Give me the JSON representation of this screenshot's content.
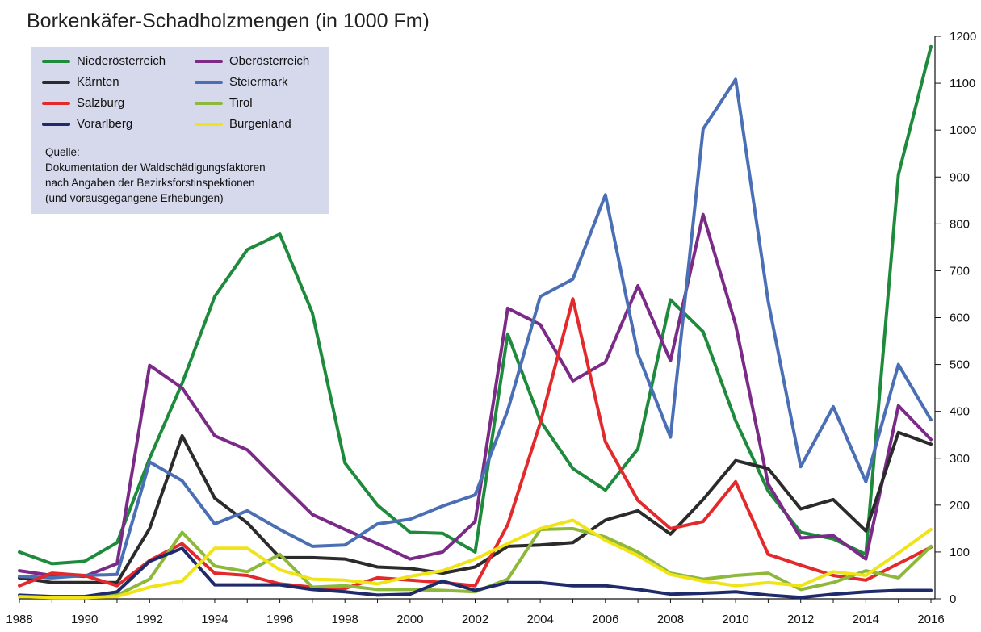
{
  "chart_data": {
    "type": "line",
    "title": "Borkenkäfer-Schadholzmengen  (in 1000 Fm)",
    "x": [
      1988,
      1989,
      1990,
      1991,
      1992,
      1993,
      1994,
      1995,
      1996,
      1997,
      1998,
      1999,
      2000,
      2001,
      2002,
      2003,
      2004,
      2005,
      2006,
      2007,
      2008,
      2009,
      2010,
      2011,
      2012,
      2013,
      2014,
      2015,
      2016
    ],
    "x_ticks": [
      1988,
      1990,
      1992,
      1994,
      1996,
      1998,
      2000,
      2002,
      2004,
      2006,
      2008,
      2010,
      2012,
      2014,
      2016
    ],
    "y_ticks": [
      0,
      100,
      200,
      300,
      400,
      500,
      600,
      700,
      800,
      900,
      1000,
      1100,
      1200
    ],
    "xlim": [
      1988,
      2016
    ],
    "ylim": [
      0,
      1200
    ],
    "y_axis_side": "right",
    "grid": false,
    "legend_position": "top-left",
    "series": [
      {
        "name": "Niederösterreich",
        "color": "#1e8a3c",
        "values": [
          100,
          75,
          80,
          120,
          300,
          460,
          645,
          745,
          778,
          610,
          290,
          200,
          142,
          140,
          100,
          565,
          380,
          278,
          232,
          320,
          638,
          570,
          380,
          230,
          142,
          128,
          95,
          905,
          1178
        ]
      },
      {
        "name": "Oberösterreich",
        "color": "#7b2a87",
        "values": [
          60,
          50,
          48,
          75,
          498,
          450,
          348,
          318,
          248,
          180,
          148,
          118,
          85,
          100,
          165,
          620,
          585,
          465,
          505,
          668,
          508,
          820,
          585,
          245,
          130,
          135,
          85,
          412,
          340
        ]
      },
      {
        "name": "Kärnten",
        "color": "#2b2b2b",
        "values": [
          45,
          35,
          35,
          35,
          150,
          348,
          215,
          162,
          88,
          88,
          85,
          68,
          65,
          55,
          68,
          112,
          115,
          120,
          168,
          188,
          138,
          212,
          295,
          278,
          192,
          212,
          145,
          355,
          330
        ]
      },
      {
        "name": "Steiermark",
        "color": "#4a6fb5",
        "values": [
          48,
          45,
          50,
          52,
          292,
          252,
          160,
          188,
          148,
          112,
          115,
          160,
          170,
          198,
          222,
          402,
          645,
          682,
          862,
          522,
          345,
          1002,
          1108,
          635,
          282,
          410,
          250,
          500,
          382
        ]
      },
      {
        "name": "Salzburg",
        "color": "#e2292b",
        "values": [
          28,
          55,
          50,
          28,
          82,
          118,
          55,
          50,
          32,
          25,
          22,
          45,
          40,
          35,
          28,
          158,
          375,
          640,
          335,
          210,
          150,
          165,
          250,
          95,
          72,
          50,
          40,
          75,
          110
        ]
      },
      {
        "name": "Tirol",
        "color": "#8db83a",
        "values": [
          5,
          3,
          2,
          8,
          42,
          142,
          70,
          58,
          95,
          25,
          28,
          20,
          20,
          18,
          15,
          42,
          148,
          150,
          132,
          100,
          55,
          42,
          50,
          55,
          20,
          35,
          60,
          45,
          112
        ]
      },
      {
        "name": "Vorarlberg",
        "color": "#1f2a6b",
        "values": [
          8,
          5,
          5,
          15,
          80,
          108,
          30,
          30,
          30,
          20,
          15,
          8,
          10,
          38,
          18,
          35,
          35,
          28,
          28,
          20,
          10,
          12,
          15,
          8,
          3,
          10,
          15,
          18,
          18
        ]
      },
      {
        "name": "Burgenland",
        "color": "#f0e316",
        "values": [
          5,
          3,
          3,
          5,
          25,
          38,
          108,
          108,
          62,
          42,
          40,
          32,
          48,
          60,
          85,
          118,
          150,
          168,
          125,
          92,
          52,
          38,
          28,
          35,
          28,
          58,
          50,
          98,
          148
        ]
      }
    ],
    "legend_rows": [
      [
        "Niederösterreich",
        "Oberösterreich"
      ],
      [
        "Kärnten",
        "Steiermark"
      ],
      [
        "Salzburg",
        "Tirol"
      ],
      [
        "Vorarlberg",
        "Burgenland"
      ]
    ],
    "source_lines": [
      "Quelle:",
      "Dokumentation der Waldschädigungsfaktoren",
      "nach Angaben der Bezirksforstinspektionen",
      "(und vorausgegangene Erhebungen)"
    ]
  }
}
